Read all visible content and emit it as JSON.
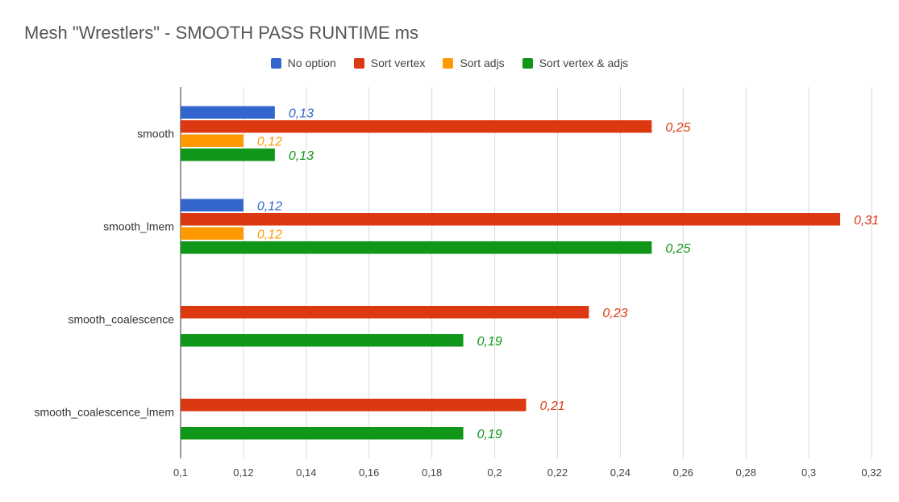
{
  "chart_data": {
    "type": "bar",
    "orientation": "horizontal",
    "title": "Mesh \"Wrestlers\" - SMOOTH PASS RUNTIME ms",
    "xlabel": "",
    "ylabel": "",
    "xlim": [
      0.1,
      0.32
    ],
    "x_ticks": [
      "0,1",
      "0,12",
      "0,14",
      "0,16",
      "0,18",
      "0,2",
      "0,22",
      "0,24",
      "0,26",
      "0,28",
      "0,3",
      "0,32"
    ],
    "x_tick_values": [
      0.1,
      0.12,
      0.14,
      0.16,
      0.18,
      0.2,
      0.22,
      0.24,
      0.26,
      0.28,
      0.3,
      0.32
    ],
    "grid": true,
    "legend_position": "top",
    "categories": [
      "smooth",
      "smooth_lmem",
      "smooth_coalescence",
      "smooth_coalescence_lmem"
    ],
    "series": [
      {
        "name": "No option",
        "color": "#3366cc",
        "values": [
          0.13,
          0.12,
          null,
          null
        ],
        "labels": [
          "0,13",
          "0,12",
          "",
          ""
        ]
      },
      {
        "name": "Sort vertex",
        "color": "#dc3912",
        "values": [
          0.25,
          0.31,
          0.23,
          0.21
        ],
        "labels": [
          "0,25",
          "0,31",
          "0,23",
          "0,21"
        ]
      },
      {
        "name": "Sort adjs",
        "color": "#ff9900",
        "values": [
          0.12,
          0.12,
          null,
          null
        ],
        "labels": [
          "0,12",
          "0,12",
          "",
          ""
        ]
      },
      {
        "name": "Sort vertex & adjs",
        "color": "#109618",
        "values": [
          0.13,
          0.25,
          0.19,
          0.19
        ],
        "labels": [
          "0,13",
          "0,25",
          "0,19",
          "0,19"
        ]
      }
    ]
  }
}
